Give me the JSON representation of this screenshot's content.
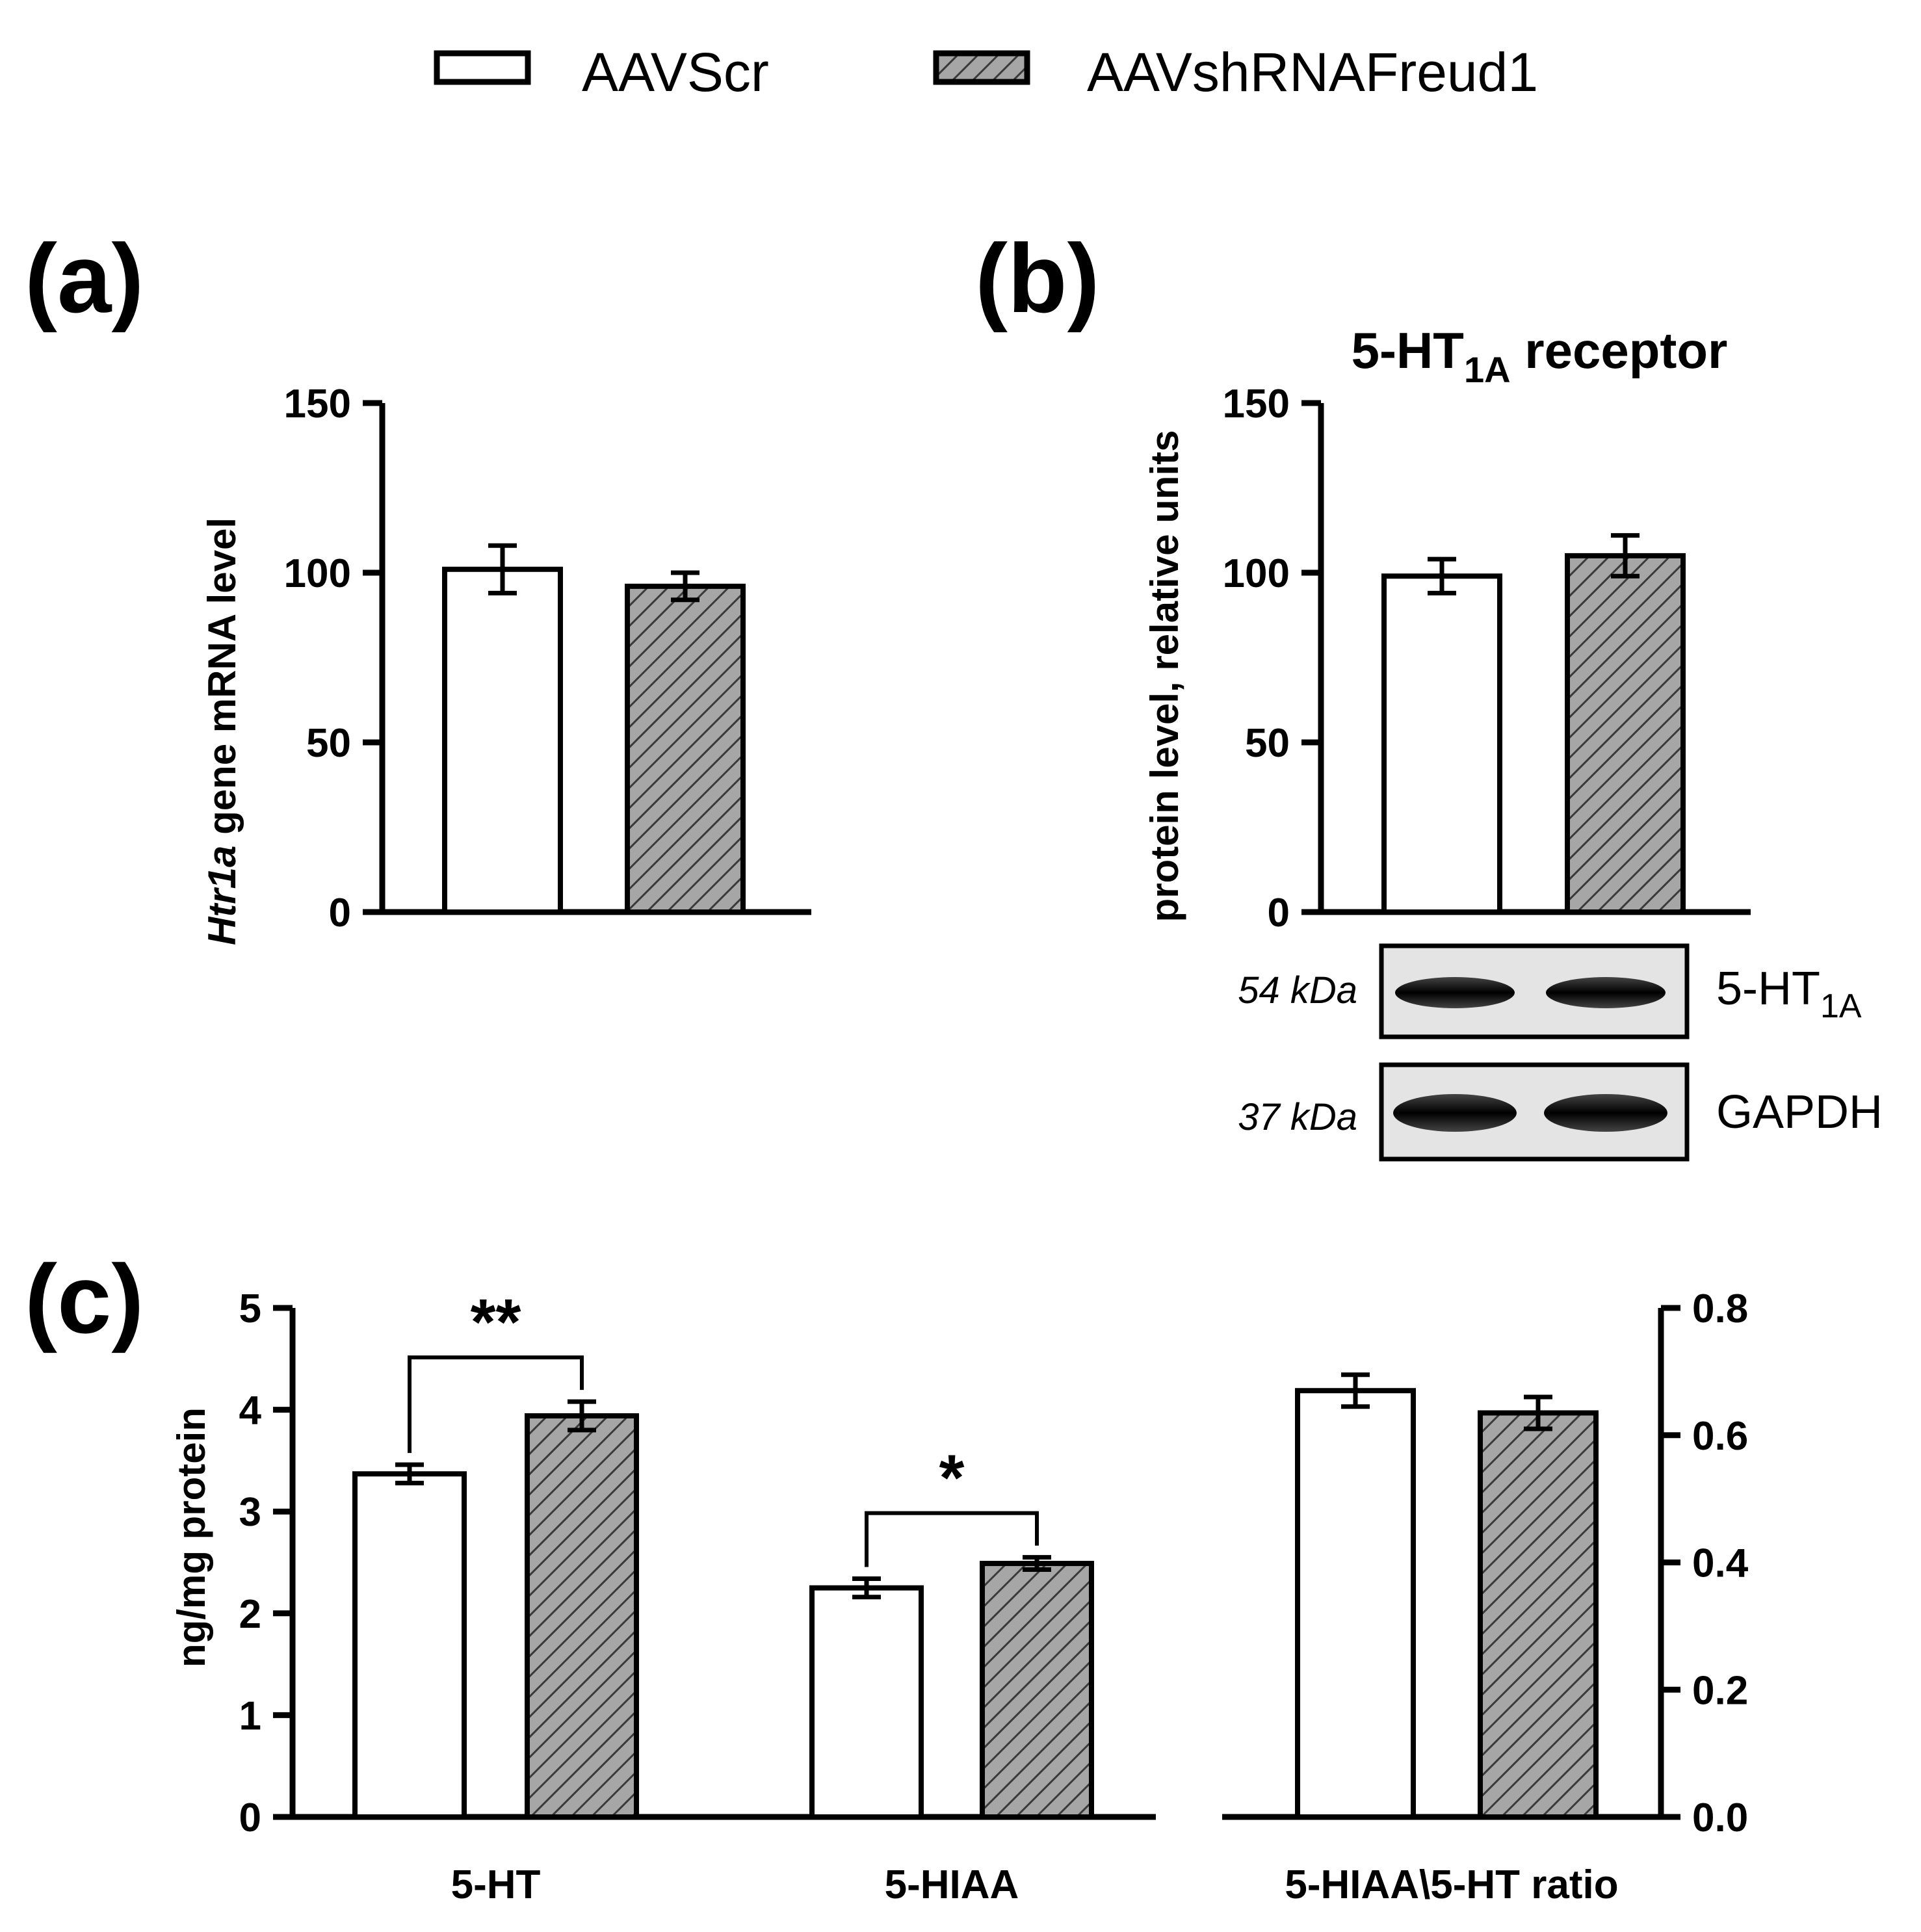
{
  "legend": [
    {
      "label": "AAVScr",
      "pattern": "open"
    },
    {
      "label": "AAVshRNAFreud1",
      "pattern": "hatched"
    }
  ],
  "colors": {
    "open_fill": "#ffffff",
    "hatched_fill": "#a6a6a6",
    "hatch_line": "#3a3a3a"
  },
  "panels": {
    "a": {
      "label": "(a)",
      "ylabel_italic": "Htr1a",
      "ylabel_rest": " gene mRNA level"
    },
    "b": {
      "label": "(b)",
      "title_main": "5-HT",
      "title_sub": "1A",
      "title_rest": " receptor",
      "ylabel": "protein level, relative units",
      "blot": [
        {
          "kda": "54 kDa",
          "name": "5-HT",
          "name_sub": "1A"
        },
        {
          "kda": "37 kDa",
          "name": "GAPDH",
          "name_sub": ""
        }
      ]
    },
    "c": {
      "label": "(c)",
      "ylabel": "ng/mg protein"
    }
  },
  "chart_data": [
    {
      "type": "bar",
      "id": "a",
      "title": "",
      "ylabel": "Htr1a gene mRNA level",
      "ylim": [
        0,
        150
      ],
      "yticks": [
        "0",
        "50",
        "100",
        "150"
      ],
      "categories": [
        ""
      ],
      "series": [
        {
          "name": "AAVScr",
          "values": [
            101
          ],
          "error": [
            7
          ]
        },
        {
          "name": "AAVshRNAFreud1",
          "values": [
            96
          ],
          "error": [
            4
          ]
        }
      ]
    },
    {
      "type": "bar",
      "id": "b",
      "title": "5-HT1A receptor",
      "ylabel": "protein level, relative units",
      "ylim": [
        0,
        150
      ],
      "yticks": [
        "0",
        "50",
        "100",
        "150"
      ],
      "categories": [
        ""
      ],
      "series": [
        {
          "name": "AAVScr",
          "values": [
            99
          ],
          "error": [
            5
          ]
        },
        {
          "name": "AAVshRNAFreud1",
          "values": [
            105
          ],
          "error": [
            6
          ]
        }
      ]
    },
    {
      "type": "bar",
      "id": "c-left",
      "ylabel": "ng/mg protein",
      "ylim": [
        0,
        5
      ],
      "yticks": [
        "0",
        "1",
        "2",
        "3",
        "4",
        "5"
      ],
      "categories": [
        "5-HT",
        "5-HIAA"
      ],
      "series": [
        {
          "name": "AAVScr",
          "values": [
            3.37,
            2.25
          ],
          "error": [
            0.09,
            0.09
          ]
        },
        {
          "name": "AAVshRNAFreud1",
          "values": [
            3.94,
            2.49
          ],
          "error": [
            0.14,
            0.06
          ]
        }
      ],
      "significance": [
        "**",
        "*"
      ]
    },
    {
      "type": "bar",
      "id": "c-right",
      "ylabel": "",
      "ylim": [
        0,
        0.8
      ],
      "yticks": [
        "0.0",
        "0.2",
        "0.4",
        "0.6",
        "0.8"
      ],
      "categories": [
        "5-HIAA\\5-HT ratio"
      ],
      "series": [
        {
          "name": "AAVScr",
          "values": [
            0.67
          ],
          "error": [
            0.025
          ]
        },
        {
          "name": "AAVshRNAFreud1",
          "values": [
            0.635
          ],
          "error": [
            0.025
          ]
        }
      ]
    }
  ]
}
